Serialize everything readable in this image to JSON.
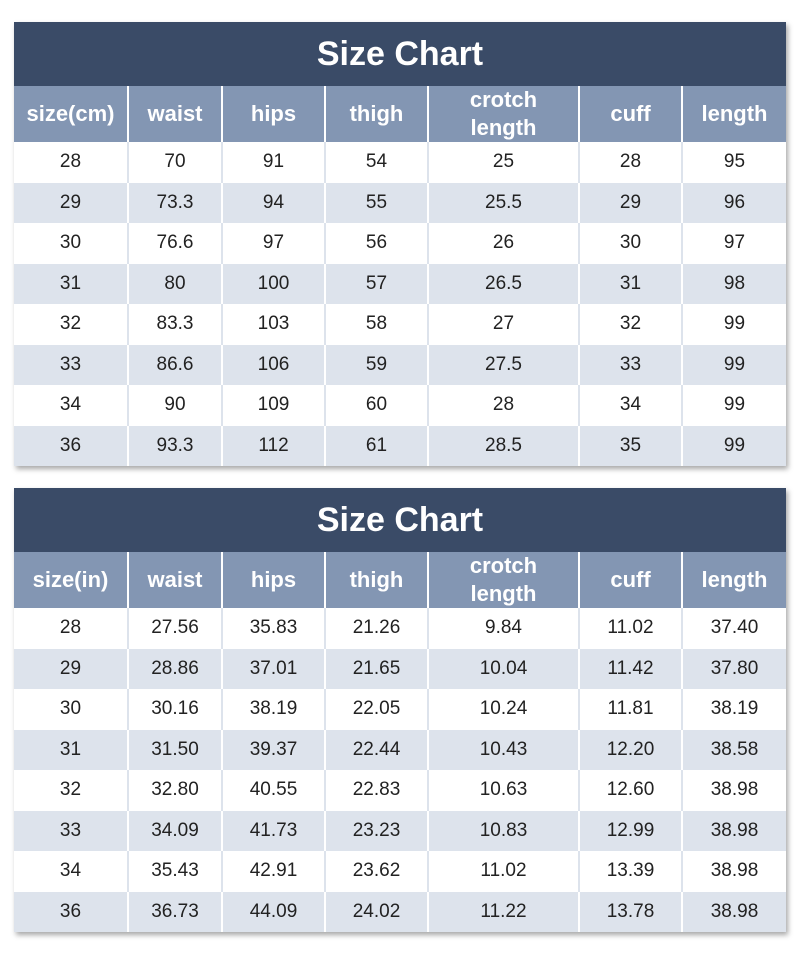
{
  "tables": [
    {
      "title": "Size Chart",
      "header": [
        "size(cm)",
        "waist",
        "hips",
        "thigh",
        "crotch length",
        "cuff",
        "length"
      ],
      "rows": [
        [
          "28",
          "70",
          "91",
          "54",
          "25",
          "28",
          "95"
        ],
        [
          "29",
          "73.3",
          "94",
          "55",
          "25.5",
          "29",
          "96"
        ],
        [
          "30",
          "76.6",
          "97",
          "56",
          "26",
          "30",
          "97"
        ],
        [
          "31",
          "80",
          "100",
          "57",
          "26.5",
          "31",
          "98"
        ],
        [
          "32",
          "83.3",
          "103",
          "58",
          "27",
          "32",
          "99"
        ],
        [
          "33",
          "86.6",
          "106",
          "59",
          "27.5",
          "33",
          "99"
        ],
        [
          "34",
          "90",
          "109",
          "60",
          "28",
          "34",
          "99"
        ],
        [
          "36",
          "93.3",
          "112",
          "61",
          "28.5",
          "35",
          "99"
        ]
      ]
    },
    {
      "title": "Size Chart",
      "header": [
        "size(in)",
        "waist",
        "hips",
        "thigh",
        "crotch length",
        "cuff",
        "length"
      ],
      "rows": [
        [
          "28",
          "27.56",
          "35.83",
          "21.26",
          "9.84",
          "11.02",
          "37.40"
        ],
        [
          "29",
          "28.86",
          "37.01",
          "21.65",
          "10.04",
          "11.42",
          "37.80"
        ],
        [
          "30",
          "30.16",
          "38.19",
          "22.05",
          "10.24",
          "11.81",
          "38.19"
        ],
        [
          "31",
          "31.50",
          "39.37",
          "22.44",
          "10.43",
          "12.20",
          "38.58"
        ],
        [
          "32",
          "32.80",
          "40.55",
          "22.83",
          "10.63",
          "12.60",
          "38.98"
        ],
        [
          "33",
          "34.09",
          "41.73",
          "23.23",
          "10.83",
          "12.99",
          "38.98"
        ],
        [
          "34",
          "35.43",
          "42.91",
          "23.62",
          "11.02",
          "13.39",
          "38.98"
        ],
        [
          "36",
          "36.73",
          "44.09",
          "24.02",
          "11.22",
          "13.78",
          "38.98"
        ]
      ]
    }
  ]
}
